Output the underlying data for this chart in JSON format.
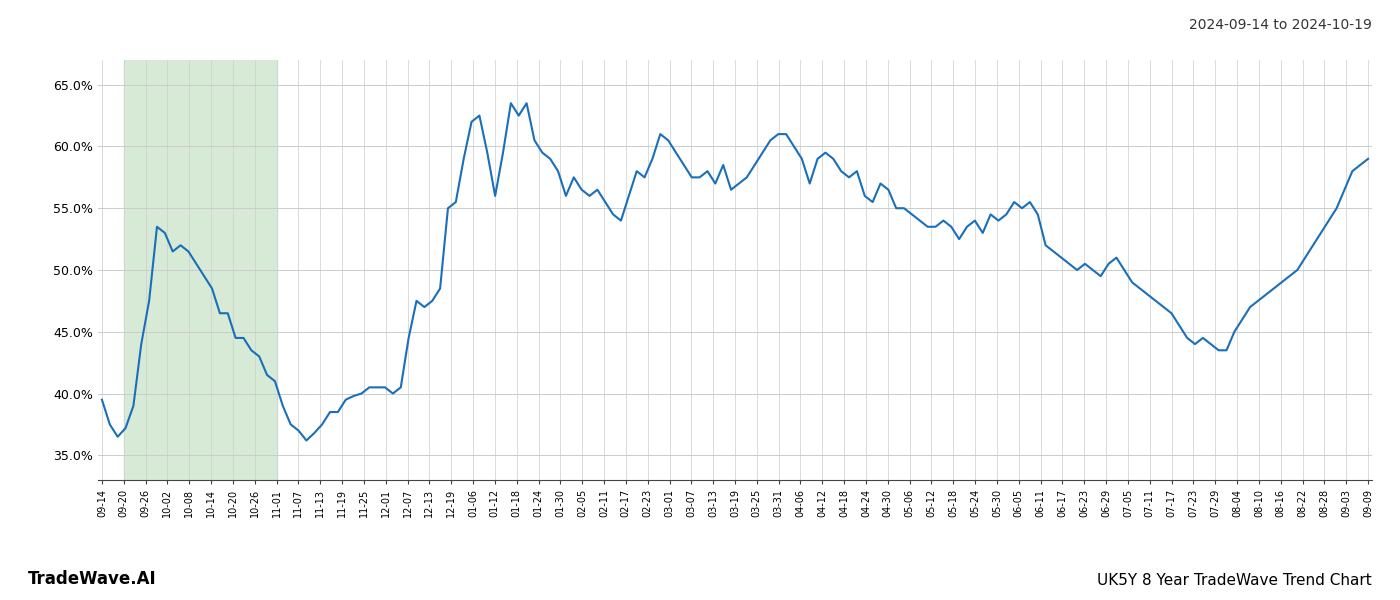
{
  "title_right": "2024-09-14 to 2024-10-19",
  "footer_left": "TradeWave.AI",
  "footer_right": "UK5Y 8 Year TradeWave Trend Chart",
  "ylim": [
    33.0,
    67.0
  ],
  "yticks": [
    35.0,
    40.0,
    45.0,
    50.0,
    55.0,
    60.0,
    65.0
  ],
  "highlight_color": "#d6ead6",
  "line_color": "#1a6fba",
  "line_width": 1.5,
  "grid_color": "#cccccc",
  "bg_color": "#ffffff",
  "x_tick_labels": [
    "09-14",
    "09-20",
    "09-26",
    "10-02",
    "10-08",
    "10-14",
    "10-20",
    "10-26",
    "11-01",
    "11-07",
    "11-13",
    "11-19",
    "11-25",
    "12-01",
    "12-07",
    "12-13",
    "12-19",
    "01-06",
    "01-12",
    "01-18",
    "01-24",
    "01-30",
    "02-05",
    "02-11",
    "02-17",
    "02-23",
    "03-01",
    "03-07",
    "03-13",
    "03-19",
    "03-25",
    "03-31",
    "04-06",
    "04-12",
    "04-18",
    "04-24",
    "04-30",
    "05-06",
    "05-12",
    "05-18",
    "05-24",
    "05-30",
    "06-05",
    "06-11",
    "06-17",
    "06-23",
    "06-29",
    "07-05",
    "07-11",
    "07-17",
    "07-23",
    "07-29",
    "08-04",
    "08-10",
    "08-16",
    "08-22",
    "08-28",
    "09-03",
    "09-09"
  ],
  "key_points": [
    [
      0,
      39.5
    ],
    [
      1,
      37.5
    ],
    [
      2,
      36.5
    ],
    [
      3,
      37.2
    ],
    [
      4,
      39.0
    ],
    [
      5,
      44.0
    ],
    [
      6,
      47.5
    ],
    [
      7,
      53.5
    ],
    [
      8,
      53.0
    ],
    [
      9,
      51.5
    ],
    [
      10,
      52.0
    ],
    [
      11,
      51.5
    ],
    [
      12,
      50.5
    ],
    [
      13,
      49.5
    ],
    [
      14,
      48.5
    ],
    [
      15,
      46.5
    ],
    [
      16,
      46.5
    ],
    [
      17,
      44.5
    ],
    [
      18,
      44.5
    ],
    [
      19,
      43.5
    ],
    [
      20,
      43.0
    ],
    [
      21,
      41.5
    ],
    [
      22,
      41.0
    ],
    [
      23,
      39.0
    ],
    [
      24,
      37.5
    ],
    [
      25,
      37.0
    ],
    [
      26,
      36.2
    ],
    [
      27,
      36.8
    ],
    [
      28,
      37.5
    ],
    [
      29,
      38.5
    ],
    [
      30,
      38.5
    ],
    [
      31,
      39.5
    ],
    [
      32,
      39.8
    ],
    [
      33,
      40.0
    ],
    [
      34,
      40.5
    ],
    [
      35,
      40.5
    ],
    [
      36,
      40.5
    ],
    [
      37,
      40.0
    ],
    [
      38,
      40.5
    ],
    [
      39,
      44.5
    ],
    [
      40,
      47.5
    ],
    [
      41,
      47.0
    ],
    [
      42,
      47.5
    ],
    [
      43,
      48.5
    ],
    [
      44,
      55.0
    ],
    [
      45,
      55.5
    ],
    [
      46,
      59.0
    ],
    [
      47,
      62.0
    ],
    [
      48,
      62.5
    ],
    [
      49,
      59.5
    ],
    [
      50,
      56.0
    ],
    [
      51,
      59.5
    ],
    [
      52,
      63.5
    ],
    [
      53,
      62.5
    ],
    [
      54,
      63.5
    ],
    [
      55,
      60.5
    ],
    [
      56,
      59.5
    ],
    [
      57,
      59.0
    ],
    [
      58,
      58.0
    ],
    [
      59,
      56.0
    ],
    [
      60,
      57.5
    ],
    [
      61,
      56.5
    ],
    [
      62,
      56.0
    ],
    [
      63,
      56.5
    ],
    [
      64,
      55.5
    ],
    [
      65,
      54.5
    ],
    [
      66,
      54.0
    ],
    [
      67,
      56.0
    ],
    [
      68,
      58.0
    ],
    [
      69,
      57.5
    ],
    [
      70,
      59.0
    ],
    [
      71,
      61.0
    ],
    [
      72,
      60.5
    ],
    [
      73,
      59.5
    ],
    [
      74,
      58.5
    ],
    [
      75,
      57.5
    ],
    [
      76,
      57.5
    ],
    [
      77,
      58.0
    ],
    [
      78,
      57.0
    ],
    [
      79,
      58.5
    ],
    [
      80,
      56.5
    ],
    [
      81,
      57.0
    ],
    [
      82,
      57.5
    ],
    [
      83,
      58.5
    ],
    [
      84,
      59.5
    ],
    [
      85,
      60.5
    ],
    [
      86,
      61.0
    ],
    [
      87,
      61.0
    ],
    [
      88,
      60.0
    ],
    [
      89,
      59.0
    ],
    [
      90,
      57.0
    ],
    [
      91,
      59.0
    ],
    [
      92,
      59.5
    ],
    [
      93,
      59.0
    ],
    [
      94,
      58.0
    ],
    [
      95,
      57.5
    ],
    [
      96,
      58.0
    ],
    [
      97,
      56.0
    ],
    [
      98,
      55.5
    ],
    [
      99,
      57.0
    ],
    [
      100,
      56.5
    ],
    [
      101,
      55.0
    ],
    [
      102,
      55.0
    ],
    [
      103,
      54.5
    ],
    [
      104,
      54.0
    ],
    [
      105,
      53.5
    ],
    [
      106,
      53.5
    ],
    [
      107,
      54.0
    ],
    [
      108,
      53.5
    ],
    [
      109,
      52.5
    ],
    [
      110,
      53.5
    ],
    [
      111,
      54.0
    ],
    [
      112,
      53.0
    ],
    [
      113,
      54.5
    ],
    [
      114,
      54.0
    ],
    [
      115,
      54.5
    ],
    [
      116,
      55.5
    ],
    [
      117,
      55.0
    ],
    [
      118,
      55.5
    ],
    [
      119,
      54.5
    ],
    [
      120,
      52.0
    ],
    [
      121,
      51.5
    ],
    [
      122,
      51.0
    ],
    [
      123,
      50.5
    ],
    [
      124,
      50.0
    ],
    [
      125,
      50.5
    ],
    [
      126,
      50.0
    ],
    [
      127,
      49.5
    ],
    [
      128,
      50.5
    ],
    [
      129,
      51.0
    ],
    [
      130,
      50.0
    ],
    [
      131,
      49.0
    ],
    [
      132,
      48.5
    ],
    [
      133,
      48.0
    ],
    [
      134,
      47.5
    ],
    [
      135,
      47.0
    ],
    [
      136,
      46.5
    ],
    [
      137,
      45.5
    ],
    [
      138,
      44.5
    ],
    [
      139,
      44.0
    ],
    [
      140,
      44.5
    ],
    [
      141,
      44.0
    ],
    [
      142,
      43.5
    ],
    [
      143,
      43.5
    ],
    [
      144,
      45.0
    ],
    [
      145,
      46.0
    ],
    [
      146,
      47.0
    ],
    [
      147,
      47.5
    ],
    [
      148,
      48.0
    ],
    [
      149,
      48.5
    ],
    [
      150,
      49.0
    ],
    [
      151,
      49.5
    ],
    [
      152,
      50.0
    ],
    [
      153,
      51.0
    ],
    [
      154,
      52.0
    ],
    [
      155,
      53.0
    ],
    [
      156,
      54.0
    ],
    [
      157,
      55.0
    ],
    [
      158,
      56.5
    ],
    [
      159,
      58.0
    ],
    [
      160,
      58.5
    ],
    [
      161,
      59.0
    ]
  ]
}
